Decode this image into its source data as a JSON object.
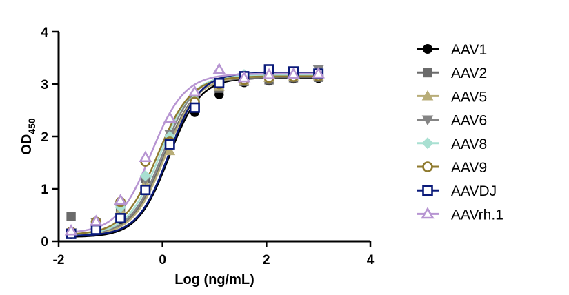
{
  "chart_data": {
    "type": "line",
    "title": "",
    "xlabel": "Log (ng/mL)",
    "ylabel": {
      "main": "OD",
      "sub": "450"
    },
    "xlim": [
      -2,
      4
    ],
    "ylim": [
      0,
      4
    ],
    "xticks": [
      -2,
      0,
      2,
      4
    ],
    "yticks": [
      0,
      1,
      2,
      3,
      4
    ],
    "grid": false,
    "legend_position": "right",
    "series": [
      {
        "name": "AAV1",
        "color": "#000000",
        "marker": "circle",
        "marker_fill": "filled",
        "ec50": 0.12,
        "hill": 1.45,
        "bottom": 0.08,
        "top": 3.12,
        "points": [
          [
            -1.76,
            0.13
          ],
          [
            -1.28,
            0.32
          ],
          [
            -0.81,
            0.42
          ],
          [
            -0.33,
            0.98
          ],
          [
            0.14,
            1.84
          ],
          [
            0.62,
            2.46
          ],
          [
            1.09,
            2.8
          ],
          [
            1.57,
            3.03
          ],
          [
            2.05,
            3.06
          ],
          [
            2.52,
            3.1
          ],
          [
            3.0,
            3.11
          ]
        ]
      },
      {
        "name": "AAV2",
        "color": "#6b6b6b",
        "marker": "square",
        "marker_fill": "filled",
        "ec50": 0.02,
        "hill": 1.4,
        "bottom": 0.1,
        "top": 3.13,
        "points": [
          [
            -1.76,
            0.47
          ],
          [
            -1.28,
            0.35
          ],
          [
            -0.81,
            0.55
          ],
          [
            -0.33,
            1.2
          ],
          [
            0.14,
            1.95
          ],
          [
            0.62,
            2.6
          ],
          [
            1.09,
            2.92
          ],
          [
            1.57,
            3.05
          ],
          [
            2.05,
            3.08
          ],
          [
            2.52,
            3.12
          ],
          [
            3.0,
            3.13
          ]
        ]
      },
      {
        "name": "AAV5",
        "color": "#b8ad78",
        "marker": "triangle-up",
        "marker_fill": "filled",
        "ec50": 0.05,
        "hill": 1.4,
        "bottom": 0.1,
        "top": 3.15,
        "points": [
          [
            -1.76,
            0.17
          ],
          [
            -1.28,
            0.35
          ],
          [
            -0.81,
            0.6
          ],
          [
            -0.33,
            1.1
          ],
          [
            0.14,
            1.72
          ],
          [
            0.62,
            2.58
          ],
          [
            1.09,
            2.95
          ],
          [
            1.57,
            3.05
          ],
          [
            2.05,
            3.12
          ],
          [
            2.52,
            3.13
          ],
          [
            3.0,
            3.15
          ]
        ]
      },
      {
        "name": "AAV6",
        "color": "#848484",
        "marker": "triangle-down",
        "marker_fill": "filled",
        "ec50": 0.0,
        "hill": 1.4,
        "bottom": 0.12,
        "top": 3.2,
        "points": [
          [
            -1.76,
            0.17
          ],
          [
            -1.28,
            0.36
          ],
          [
            -0.81,
            0.62
          ],
          [
            -0.33,
            1.18
          ],
          [
            0.14,
            2.05
          ],
          [
            0.62,
            2.72
          ],
          [
            1.09,
            3.0
          ],
          [
            1.57,
            3.12
          ],
          [
            2.05,
            3.17
          ],
          [
            2.52,
            3.2
          ],
          [
            3.0,
            3.28
          ]
        ]
      },
      {
        "name": "AAV8",
        "color": "#a9e0d2",
        "marker": "diamond",
        "marker_fill": "filled",
        "ec50": -0.05,
        "hill": 1.4,
        "bottom": 0.12,
        "top": 3.18,
        "points": [
          [
            -1.76,
            0.18
          ],
          [
            -1.28,
            0.37
          ],
          [
            -0.81,
            0.65
          ],
          [
            -0.33,
            1.25
          ],
          [
            0.14,
            2.0
          ],
          [
            0.62,
            2.7
          ],
          [
            1.09,
            3.0
          ],
          [
            1.57,
            3.18
          ],
          [
            2.05,
            3.15
          ],
          [
            2.52,
            3.17
          ],
          [
            3.0,
            3.19
          ]
        ]
      },
      {
        "name": "AAV9",
        "color": "#8f7a2e",
        "marker": "circle",
        "marker_fill": "open",
        "ec50": -0.1,
        "hill": 1.35,
        "bottom": 0.12,
        "top": 3.15,
        "points": [
          [
            -1.76,
            0.18
          ],
          [
            -1.28,
            0.37
          ],
          [
            -0.81,
            0.75
          ],
          [
            -0.33,
            1.52
          ],
          [
            0.14,
            1.9
          ],
          [
            0.62,
            2.66
          ],
          [
            1.09,
            3.0
          ],
          [
            1.57,
            3.08
          ],
          [
            2.05,
            3.12
          ],
          [
            2.52,
            3.14
          ],
          [
            3.0,
            3.15
          ]
        ]
      },
      {
        "name": "AAVDJ",
        "color": "#0a1a7a",
        "marker": "square",
        "marker_fill": "open",
        "ec50": 0.12,
        "hill": 1.45,
        "bottom": 0.1,
        "top": 3.22,
        "points": [
          [
            -1.76,
            0.14
          ],
          [
            -1.28,
            0.22
          ],
          [
            -0.81,
            0.44
          ],
          [
            -0.33,
            0.98
          ],
          [
            0.14,
            1.85
          ],
          [
            0.62,
            2.55
          ],
          [
            1.09,
            3.02
          ],
          [
            1.57,
            3.15
          ],
          [
            2.05,
            3.28
          ],
          [
            2.52,
            3.24
          ],
          [
            3.0,
            3.2
          ]
        ]
      },
      {
        "name": "AAVrh.1",
        "color": "#b795d2",
        "marker": "triangle-up",
        "marker_fill": "open",
        "ec50": -0.22,
        "hill": 1.35,
        "bottom": 0.15,
        "top": 3.2,
        "points": [
          [
            -1.76,
            0.2
          ],
          [
            -1.28,
            0.38
          ],
          [
            -0.81,
            0.78
          ],
          [
            -0.33,
            1.6
          ],
          [
            0.14,
            2.35
          ],
          [
            0.62,
            2.85
          ],
          [
            1.09,
            3.28
          ],
          [
            1.57,
            3.12
          ],
          [
            2.05,
            3.18
          ],
          [
            2.52,
            3.19
          ],
          [
            3.0,
            3.2
          ]
        ]
      }
    ]
  }
}
